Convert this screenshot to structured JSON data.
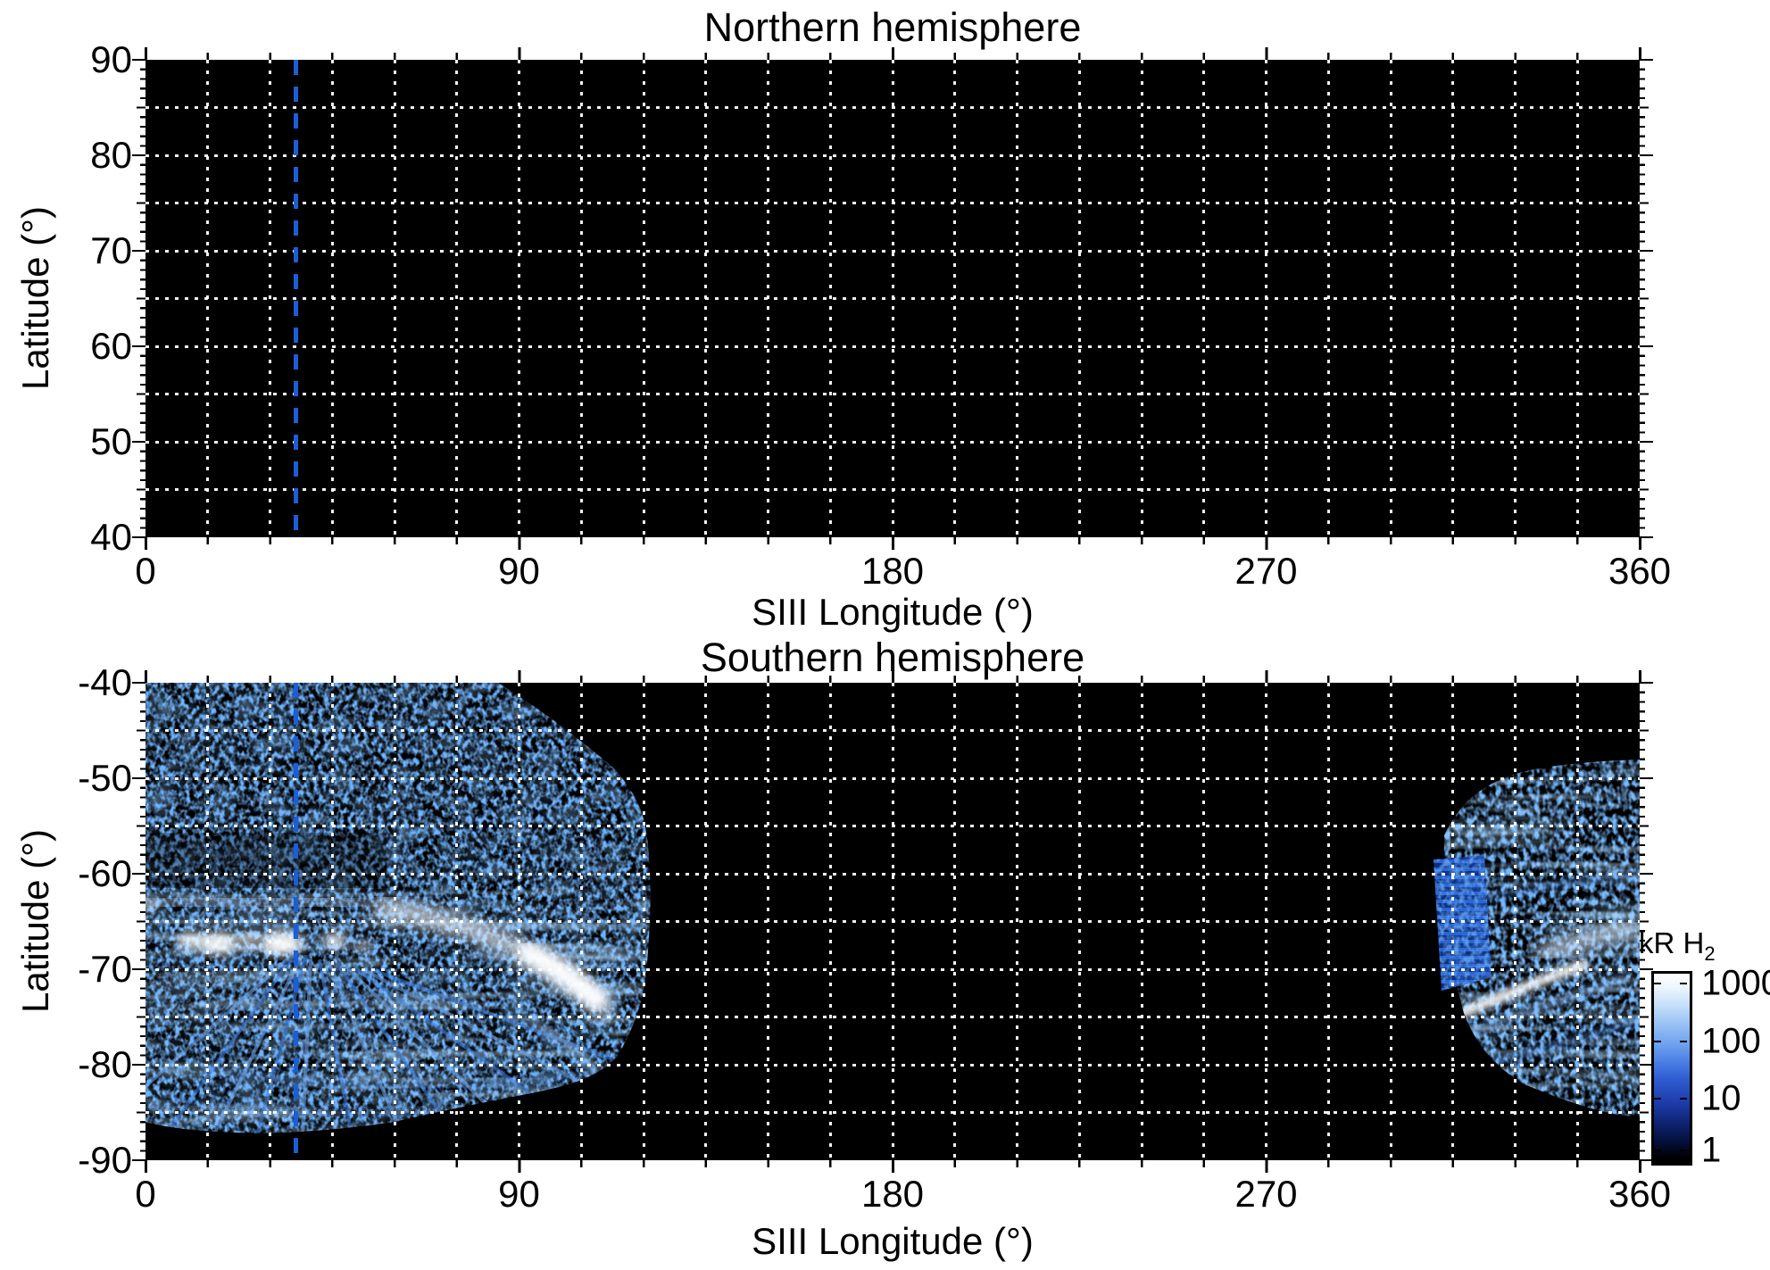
{
  "figure": {
    "panels": [
      {
        "title": "Northern hemisphere",
        "xlabel": "SIII Longitude (°)",
        "ylabel": "Latitude (°)",
        "xtick_labels": [
          "0",
          "90",
          "180",
          "270",
          "360"
        ],
        "ytick_labels": [
          "90",
          "80",
          "70",
          "60",
          "50",
          "40"
        ]
      },
      {
        "title": "Southern hemisphere",
        "xlabel": "SIII Longitude (°)",
        "ylabel": "Latitude (°)",
        "xtick_labels": [
          "0",
          "90",
          "180",
          "270",
          "360"
        ],
        "ytick_labels": [
          "-40",
          "-50",
          "-60",
          "-70",
          "-80",
          "-90"
        ]
      }
    ],
    "colorbar": {
      "title_main": "kR H",
      "title_sub": "2",
      "tick_labels": [
        "1000",
        "100",
        "10",
        "1"
      ]
    },
    "accent_colors": {
      "reference_line_blue": "#1b5ed8",
      "grid_white": "#ffffff",
      "background_black": "#000000"
    }
  },
  "chart_data": [
    {
      "type": "heatmap",
      "title": "Northern hemisphere",
      "xlabel": "SIII Longitude (°)",
      "ylabel": "Latitude (°)",
      "xlim": [
        0,
        360
      ],
      "ylim": [
        40,
        90
      ],
      "xticks": [
        0,
        90,
        180,
        270,
        360
      ],
      "yticks": [
        90,
        80,
        70,
        60,
        50,
        40
      ],
      "grid": "white dotted lines every 15° longitude and 5° latitude",
      "reference_line": {
        "style": "vertical blue dashed",
        "longitude_deg": 36
      },
      "data_summary": "entirely black: no H2 auroral emission detected in this hemisphere/map"
    },
    {
      "type": "heatmap",
      "title": "Southern hemisphere",
      "xlabel": "SIII Longitude (°)",
      "ylabel": "Latitude (°)",
      "xlim": [
        0,
        360
      ],
      "ylim": [
        -90,
        -40
      ],
      "xticks": [
        0,
        90,
        180,
        270,
        360
      ],
      "yticks": [
        -40,
        -50,
        -60,
        -70,
        -80,
        -90
      ],
      "grid": "white dotted lines every 15° longitude and 5° latitude",
      "reference_line": {
        "style": "vertical blue dashed",
        "longitude_deg": 36
      },
      "colorbar": {
        "label": "kR H2",
        "scale": "log",
        "ticks": [
          1000,
          100,
          10,
          1
        ],
        "units": "kR"
      },
      "features": [
        {
          "name": "diffuse speckled emission",
          "lon_range_deg": [
            0,
            122
          ],
          "lat_range_deg": [
            -87,
            -40
          ],
          "intensity_kR": "1-50"
        },
        {
          "name": "main auroral oval bright arc",
          "lon_range_deg": [
            0,
            118
          ],
          "lat_range_deg": [
            -76,
            -62
          ],
          "intensity_kR": "100-1000, white patches near lon 10-50 at lat ~-67 and lon 85-112 at lat -68 to -75"
        },
        {
          "name": "fan-shaped scan streaks",
          "lon_range_deg": [
            0,
            110
          ],
          "lat_range_deg": [
            -87,
            -70
          ],
          "intensity_kR": "5-100"
        },
        {
          "name": "second emission region",
          "lon_range_deg": [
            310,
            360
          ],
          "lat_range_deg": [
            -86,
            -48
          ],
          "intensity_kR": "1-1000, bright white arc at lat -75 to -66 for lon 318-360"
        },
        {
          "name": "no emission",
          "lon_range_deg": [
            122,
            310
          ],
          "lat_range_deg": [
            -90,
            -40
          ],
          "intensity_kR": "0 (black)"
        }
      ]
    }
  ]
}
